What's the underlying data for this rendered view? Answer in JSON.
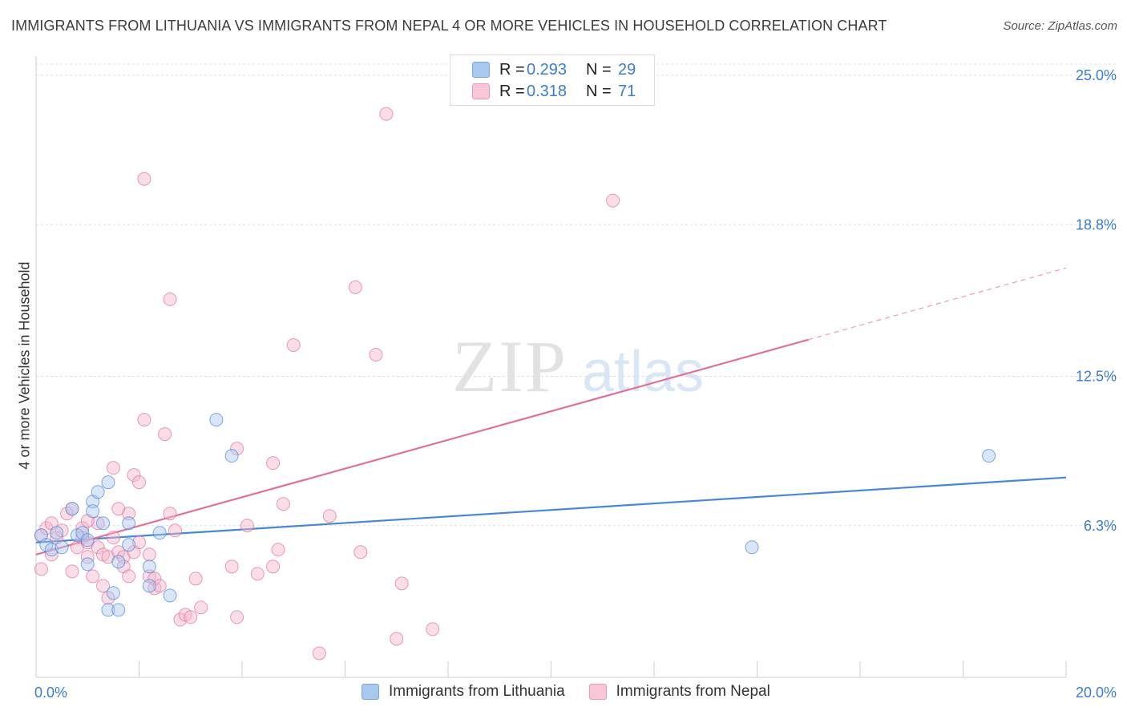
{
  "header": {
    "title": "IMMIGRANTS FROM LITHUANIA VS IMMIGRANTS FROM NEPAL 4 OR MORE VEHICLES IN HOUSEHOLD CORRELATION CHART",
    "source": "Source: ZipAtlas.com"
  },
  "watermark": {
    "zip": "ZIP",
    "atlas": "atlas"
  },
  "legend": {
    "rows": [
      {
        "r_label": "R =",
        "r_value": "0.293",
        "n_label": "N =",
        "n_value": "29",
        "color": "#a8c8f0"
      },
      {
        "r_label": "R =",
        "r_value": "0.318",
        "n_label": "N =",
        "n_value": "71",
        "color": "#f5b6c9"
      }
    ]
  },
  "chart_data": {
    "type": "scatter",
    "xlabel": "",
    "ylabel": "4 or more Vehicles in Household",
    "xlim": [
      0,
      20
    ],
    "ylim": [
      0,
      25.8
    ],
    "x_tick_labels": [
      "0.0%",
      "20.0%"
    ],
    "y_ticks": [
      6.3,
      12.5,
      18.8,
      25.0
    ],
    "y_tick_labels": [
      "6.3%",
      "12.5%",
      "18.8%",
      "25.0%"
    ],
    "grid": true,
    "legend_position": "bottom",
    "series": [
      {
        "name": "Immigrants from Lithuania",
        "color": "#4a86d8",
        "fill": "#a8c8f0",
        "trend": {
          "x": [
            0,
            20
          ],
          "y": [
            5.6,
            8.3
          ],
          "dashed_from": null
        },
        "points": [
          [
            0.1,
            5.9
          ],
          [
            0.2,
            5.5
          ],
          [
            0.3,
            5.3
          ],
          [
            0.4,
            6.0
          ],
          [
            0.5,
            5.4
          ],
          [
            0.7,
            7.0
          ],
          [
            0.8,
            5.9
          ],
          [
            0.9,
            6.0
          ],
          [
            1.0,
            5.7
          ],
          [
            1.0,
            4.7
          ],
          [
            1.1,
            7.3
          ],
          [
            1.1,
            6.9
          ],
          [
            1.2,
            7.7
          ],
          [
            1.3,
            6.4
          ],
          [
            1.4,
            8.1
          ],
          [
            1.5,
            3.5
          ],
          [
            1.6,
            4.8
          ],
          [
            1.8,
            6.4
          ],
          [
            1.8,
            5.5
          ],
          [
            2.2,
            4.6
          ],
          [
            2.2,
            3.8
          ],
          [
            2.4,
            6.0
          ],
          [
            2.6,
            3.4
          ],
          [
            3.5,
            10.7
          ],
          [
            3.8,
            9.2
          ],
          [
            13.9,
            5.4
          ],
          [
            18.5,
            9.2
          ],
          [
            1.4,
            2.8
          ],
          [
            1.6,
            2.8
          ]
        ]
      },
      {
        "name": "Immigrants from Nepal",
        "color": "#e0709a",
        "fill": "#f5b6c9",
        "trend": {
          "x": [
            0,
            20
          ],
          "y": [
            5.1,
            17.0
          ],
          "dashed_from": 15.0
        },
        "points": [
          [
            0.1,
            5.9
          ],
          [
            0.1,
            4.5
          ],
          [
            0.2,
            6.2
          ],
          [
            0.3,
            6.4
          ],
          [
            0.3,
            5.1
          ],
          [
            0.4,
            5.8
          ],
          [
            0.5,
            6.1
          ],
          [
            0.6,
            6.8
          ],
          [
            0.7,
            7.0
          ],
          [
            0.7,
            4.4
          ],
          [
            0.8,
            5.4
          ],
          [
            0.9,
            6.2
          ],
          [
            0.9,
            5.8
          ],
          [
            1.0,
            5.6
          ],
          [
            1.0,
            5.0
          ],
          [
            1.1,
            4.2
          ],
          [
            1.2,
            5.4
          ],
          [
            1.2,
            6.4
          ],
          [
            1.3,
            3.8
          ],
          [
            1.3,
            5.1
          ],
          [
            1.4,
            3.3
          ],
          [
            1.4,
            5.0
          ],
          [
            1.5,
            8.7
          ],
          [
            1.5,
            5.8
          ],
          [
            1.6,
            5.2
          ],
          [
            1.6,
            7.0
          ],
          [
            1.7,
            5.0
          ],
          [
            1.7,
            4.6
          ],
          [
            1.8,
            6.8
          ],
          [
            1.8,
            4.2
          ],
          [
            1.9,
            5.2
          ],
          [
            1.9,
            8.4
          ],
          [
            2.0,
            8.1
          ],
          [
            2.0,
            5.6
          ],
          [
            2.1,
            10.7
          ],
          [
            2.1,
            20.7
          ],
          [
            2.2,
            5.1
          ],
          [
            2.2,
            4.2
          ],
          [
            2.3,
            3.7
          ],
          [
            2.3,
            4.1
          ],
          [
            2.4,
            3.8
          ],
          [
            2.5,
            10.1
          ],
          [
            2.6,
            6.8
          ],
          [
            2.6,
            15.7
          ],
          [
            2.7,
            6.1
          ],
          [
            2.8,
            2.4
          ],
          [
            2.9,
            2.6
          ],
          [
            3.0,
            2.5
          ],
          [
            3.1,
            4.1
          ],
          [
            3.2,
            2.9
          ],
          [
            3.8,
            4.6
          ],
          [
            3.9,
            2.5
          ],
          [
            3.9,
            9.5
          ],
          [
            4.1,
            6.3
          ],
          [
            4.3,
            4.3
          ],
          [
            4.6,
            4.6
          ],
          [
            4.6,
            8.9
          ],
          [
            4.7,
            5.3
          ],
          [
            4.8,
            7.2
          ],
          [
            5.0,
            13.8
          ],
          [
            5.5,
            1.0
          ],
          [
            5.7,
            6.7
          ],
          [
            6.2,
            16.2
          ],
          [
            6.3,
            5.2
          ],
          [
            6.6,
            13.4
          ],
          [
            6.8,
            23.4
          ],
          [
            7.0,
            1.6
          ],
          [
            7.1,
            3.9
          ],
          [
            7.7,
            2.0
          ],
          [
            11.2,
            19.8
          ],
          [
            1.0,
            6.5
          ]
        ]
      }
    ]
  }
}
